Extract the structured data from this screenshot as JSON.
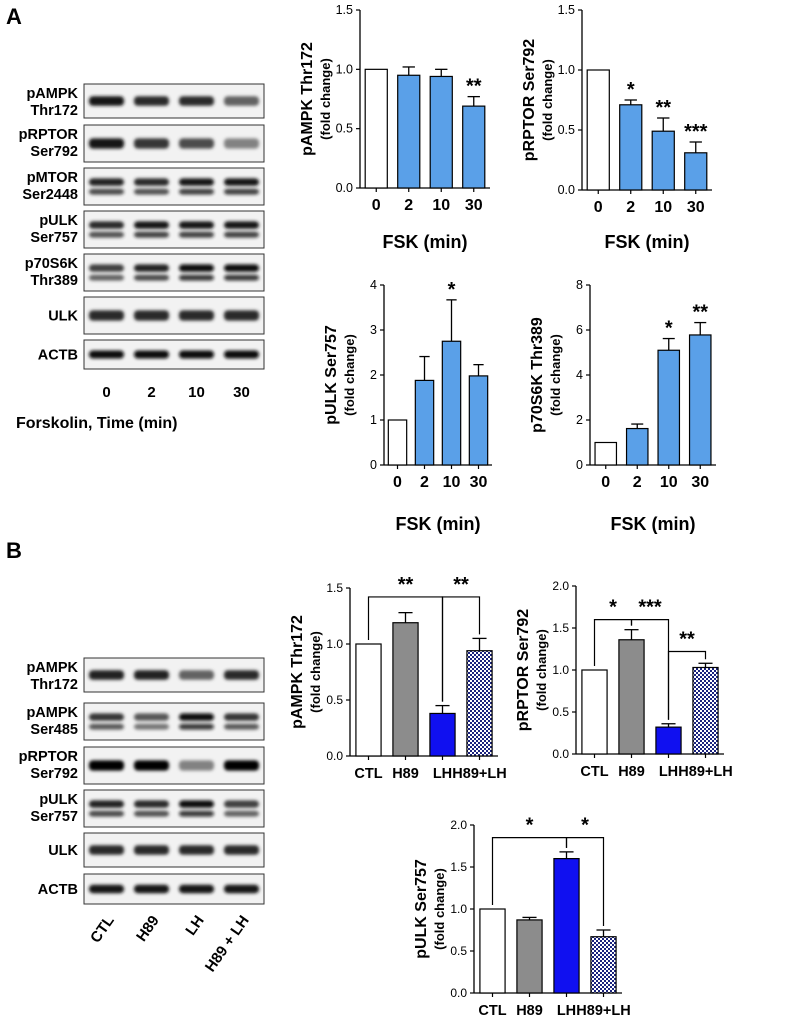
{
  "panels": [
    {
      "id": "A",
      "label": "A"
    },
    {
      "id": "B",
      "label": "B"
    }
  ],
  "blots_A": {
    "rows": [
      [
        "pAMPK",
        "Thr172"
      ],
      [
        "pRPTOR",
        "Ser792"
      ],
      [
        "pMTOR",
        "Ser2448"
      ],
      [
        "pULK",
        "Ser757"
      ],
      [
        "p70S6K",
        "Thr389"
      ],
      [
        "ULK"
      ],
      [
        "ACTB"
      ]
    ],
    "lane_labels": [
      "0",
      "2",
      "10",
      "30"
    ],
    "x_title": "Forskolin, Time (min)"
  },
  "blots_B": {
    "rows": [
      [
        "pAMPK",
        "Thr172"
      ],
      [
        "pAMPK",
        "Ser485"
      ],
      [
        "pRPTOR",
        "Ser792"
      ],
      [
        "pULK",
        "Ser757"
      ],
      [
        "ULK"
      ],
      [
        "ACTB"
      ]
    ],
    "lane_labels": [
      "CTL",
      "H89",
      "LH",
      "H89 + LH"
    ]
  },
  "colors": {
    "control": "#ffffff",
    "fsk": "#5aa0e8",
    "h89": "#8c8c8c",
    "lh": "#1010f0",
    "h89_lh_pattern": "#1a237e"
  },
  "chart_data": [
    {
      "type": "bar",
      "panel": "A",
      "ylabel": "pAMPK Thr172",
      "ysublabel": "(fold change)",
      "xlabel": "FSK (min)",
      "categories": [
        "0",
        "2",
        "10",
        "30"
      ],
      "values": [
        1.0,
        0.95,
        0.94,
        0.69
      ],
      "errors": [
        0,
        0.07,
        0.06,
        0.08
      ],
      "significance": [
        "",
        "",
        "",
        "**"
      ],
      "fills": [
        "control",
        "fsk",
        "fsk",
        "fsk"
      ],
      "ylim": [
        0,
        1.5
      ],
      "yticks": [
        "0.0",
        "0.5",
        "1.0",
        "1.5"
      ],
      "brackets": []
    },
    {
      "type": "bar",
      "panel": "A",
      "ylabel": "pRPTOR Ser792",
      "ysublabel": "(fold change)",
      "xlabel": "FSK (min)",
      "categories": [
        "0",
        "2",
        "10",
        "30"
      ],
      "values": [
        1.0,
        0.71,
        0.49,
        0.31
      ],
      "errors": [
        0,
        0.04,
        0.11,
        0.09
      ],
      "significance": [
        "",
        "*",
        "**",
        "***"
      ],
      "fills": [
        "control",
        "fsk",
        "fsk",
        "fsk"
      ],
      "ylim": [
        0,
        1.5
      ],
      "yticks": [
        "0.0",
        "0.5",
        "1.0",
        "1.5"
      ],
      "brackets": []
    },
    {
      "type": "bar",
      "panel": "A",
      "ylabel": "pULK Ser757",
      "ysublabel": "(fold change)",
      "xlabel": "FSK (min)",
      "categories": [
        "0",
        "2",
        "10",
        "30"
      ],
      "values": [
        1.0,
        1.88,
        2.75,
        1.98
      ],
      "errors": [
        0,
        0.53,
        0.92,
        0.25
      ],
      "significance": [
        "",
        "",
        "*",
        ""
      ],
      "fills": [
        "control",
        "fsk",
        "fsk",
        "fsk"
      ],
      "ylim": [
        0,
        4
      ],
      "yticks": [
        "0",
        "1",
        "2",
        "3",
        "4"
      ],
      "brackets": []
    },
    {
      "type": "bar",
      "panel": "A",
      "ylabel": "p70S6K Thr389",
      "ysublabel": "(fold change)",
      "xlabel": "FSK (min)",
      "categories": [
        "0",
        "2",
        "10",
        "30"
      ],
      "values": [
        1.0,
        1.62,
        5.1,
        5.78
      ],
      "errors": [
        0,
        0.2,
        0.52,
        0.55
      ],
      "significance": [
        "",
        "",
        "*",
        "**"
      ],
      "fills": [
        "control",
        "fsk",
        "fsk",
        "fsk"
      ],
      "ylim": [
        0,
        8
      ],
      "yticks": [
        "0",
        "2",
        "4",
        "6",
        "8"
      ],
      "brackets": []
    },
    {
      "type": "bar",
      "panel": "B",
      "ylabel": "pAMPK Thr172",
      "ysublabel": "(fold change)",
      "xlabel": "",
      "categories": [
        "CTL",
        "H89",
        "LH",
        "H89+LH"
      ],
      "values": [
        1.0,
        1.19,
        0.38,
        0.94
      ],
      "errors": [
        0,
        0.09,
        0.07,
        0.11
      ],
      "significance": [
        "",
        "",
        "",
        ""
      ],
      "fills": [
        "control",
        "h89",
        "lh",
        "h89_lh_pattern"
      ],
      "ylim": [
        0,
        1.5
      ],
      "yticks": [
        "0.0",
        "0.5",
        "1.0",
        "1.5"
      ],
      "brackets": [
        {
          "from": 0,
          "to": 2,
          "level": 1.42,
          "label": "**"
        },
        {
          "from": 2,
          "to": 3,
          "level": 1.42,
          "label": "**"
        }
      ]
    },
    {
      "type": "bar",
      "panel": "B",
      "ylabel": "pRPTOR Ser792",
      "ysublabel": "(fold change)",
      "xlabel": "",
      "categories": [
        "CTL",
        "H89",
        "LH",
        "H89+LH"
      ],
      "values": [
        1.0,
        1.36,
        0.32,
        1.03
      ],
      "errors": [
        0,
        0.12,
        0.04,
        0.05
      ],
      "significance": [
        "",
        "",
        "",
        ""
      ],
      "fills": [
        "control",
        "h89",
        "lh",
        "h89_lh_pattern"
      ],
      "ylim": [
        0,
        2.0
      ],
      "yticks": [
        "0.0",
        "0.5",
        "1.0",
        "1.5",
        "2.0"
      ],
      "brackets": [
        {
          "from": 0,
          "to": 1,
          "level": 1.6,
          "label": "*"
        },
        {
          "from": 1,
          "to": 2,
          "level": 1.6,
          "label": "***"
        },
        {
          "from": 2,
          "to": 3,
          "level": 1.22,
          "label": "**"
        }
      ]
    },
    {
      "type": "bar",
      "panel": "B",
      "ylabel": "pULK Ser757",
      "ysublabel": "(fold change)",
      "xlabel": "",
      "categories": [
        "CTL",
        "H89",
        "LH",
        "H89+LH"
      ],
      "values": [
        1.0,
        0.87,
        1.6,
        0.67
      ],
      "errors": [
        0,
        0.03,
        0.08,
        0.08
      ],
      "significance": [
        "",
        "",
        "",
        ""
      ],
      "fills": [
        "control",
        "h89",
        "lh",
        "h89_lh_pattern"
      ],
      "ylim": [
        0,
        2.0
      ],
      "yticks": [
        "0.0",
        "0.5",
        "1.0",
        "1.5",
        "2.0"
      ],
      "brackets": [
        {
          "from": 0,
          "to": 2,
          "level": 1.85,
          "label": "*"
        },
        {
          "from": 2,
          "to": 3,
          "level": 1.85,
          "label": "*"
        }
      ]
    }
  ]
}
